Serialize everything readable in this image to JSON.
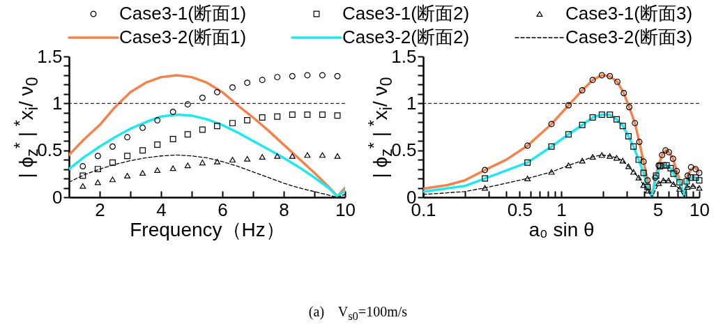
{
  "chart_data": [
    {
      "type": "line",
      "xlabel": "Frequency（Hz）",
      "ylabel": "| ϕ$_{z}$$^{*}$ | $^{*}$x$_{i}$/ ν$_{0}$",
      "xlim": [
        1,
        10
      ],
      "ylim": [
        0,
        1.5
      ],
      "xticks": [
        2,
        {
          "value": 3,
          "label": null
        },
        4,
        {
          "value": 5,
          "label": null
        },
        6,
        {
          "value": 7,
          "label": null
        },
        8,
        {
          "value": 9,
          "label": null
        },
        10
      ],
      "yticks": [
        0,
        {
          "value": 0.1,
          "label": null
        },
        {
          "value": 0.2,
          "label": null
        },
        {
          "value": 0.3,
          "label": null
        },
        {
          "value": 0.4,
          "label": null
        },
        0.5,
        {
          "value": 0.6,
          "label": null
        },
        {
          "value": 0.7,
          "label": null
        },
        {
          "value": 0.8,
          "label": null
        },
        {
          "value": 0.9,
          "label": null
        },
        1,
        {
          "value": 1.1,
          "label": null
        },
        {
          "value": 1.2,
          "label": null
        },
        {
          "value": 1.3,
          "label": null
        },
        {
          "value": 1.4,
          "label": null
        },
        1.5
      ],
      "legend": "top",
      "ref_lines": [
        {
          "axis": "y",
          "value": 1,
          "color": "#000000",
          "line_style": "dashed"
        }
      ],
      "annotations": [
        "(a)    V$_{s0}$=100m/s"
      ],
      "series": [
        {
          "name": "Case3-1(断面1)",
          "type": "scatter",
          "marker": "circle",
          "color": "#000000",
          "x": [
            1.45,
            1.94,
            2.42,
            2.9,
            3.4,
            3.88,
            4.39,
            4.87,
            5.35,
            5.83,
            6.33,
            6.81,
            7.3,
            7.79,
            8.28,
            8.77,
            9.26,
            9.75
          ],
          "values": [
            0.33,
            0.44,
            0.54,
            0.64,
            0.74,
            0.82,
            0.91,
            0.99,
            1.06,
            1.12,
            1.17,
            1.22,
            1.25,
            1.28,
            1.29,
            1.3,
            1.3,
            1.29
          ]
        },
        {
          "name": "Case3-1(断面2)",
          "type": "scatter",
          "marker": "square",
          "color": "#000000",
          "x": [
            1.45,
            1.94,
            2.42,
            2.9,
            3.4,
            3.88,
            4.39,
            4.87,
            5.35,
            5.83,
            6.33,
            6.81,
            7.3,
            7.79,
            8.28,
            8.77,
            9.26,
            9.75
          ],
          "values": [
            0.23,
            0.3,
            0.37,
            0.44,
            0.5,
            0.56,
            0.62,
            0.67,
            0.72,
            0.76,
            0.79,
            0.82,
            0.85,
            0.86,
            0.88,
            0.88,
            0.88,
            0.87
          ]
        },
        {
          "name": "Case3-1(断面3)",
          "type": "scatter",
          "marker": "triangle",
          "color": "#000000",
          "x": [
            1.45,
            1.94,
            2.42,
            2.9,
            3.4,
            3.88,
            4.39,
            4.87,
            5.35,
            5.83,
            6.33,
            6.81,
            7.3,
            7.79,
            8.28,
            8.77,
            9.26,
            9.75
          ],
          "values": [
            0.12,
            0.16,
            0.19,
            0.23,
            0.26,
            0.29,
            0.31,
            0.34,
            0.37,
            0.38,
            0.4,
            0.41,
            0.43,
            0.44,
            0.44,
            0.45,
            0.45,
            0.44
          ]
        },
        {
          "name": "Case3-2(断面1)",
          "type": "line",
          "marker": "none",
          "line_style": "solid",
          "color": "#f4824a",
          "x": [
            1,
            1.5,
            2,
            2.5,
            3,
            3.5,
            4,
            4.5,
            5,
            5.5,
            6,
            6.5,
            7,
            7.5,
            8,
            8.5,
            9,
            9.5,
            9.75,
            10
          ],
          "values": [
            0.45,
            0.62,
            0.77,
            0.96,
            1.12,
            1.22,
            1.28,
            1.3,
            1.28,
            1.22,
            1.12,
            0.98,
            0.85,
            0.71,
            0.56,
            0.41,
            0.26,
            0.1,
            0.01,
            0.1
          ]
        },
        {
          "name": "Case3-2(断面2)",
          "type": "line",
          "marker": "none",
          "line_style": "solid",
          "color": "#1de9f0",
          "x": [
            1,
            1.5,
            2,
            2.5,
            3,
            3.5,
            4,
            4.5,
            5,
            5.5,
            6,
            6.5,
            7,
            7.5,
            8,
            8.5,
            9,
            9.5,
            9.75,
            10
          ],
          "values": [
            0.3,
            0.43,
            0.54,
            0.64,
            0.73,
            0.8,
            0.86,
            0.88,
            0.87,
            0.83,
            0.77,
            0.69,
            0.6,
            0.51,
            0.42,
            0.32,
            0.21,
            0.09,
            0.01,
            0.07
          ]
        },
        {
          "name": "Case3-2(断面3)",
          "type": "line",
          "marker": "none",
          "line_style": "dashed",
          "color": "#000000",
          "x": [
            1,
            1.5,
            2,
            2.5,
            3,
            3.5,
            4,
            4.5,
            5,
            5.5,
            6,
            6.5,
            7,
            7.5,
            8,
            8.5,
            9,
            9.5,
            9.75,
            10
          ],
          "values": [
            0.16,
            0.24,
            0.3,
            0.35,
            0.39,
            0.42,
            0.44,
            0.45,
            0.44,
            0.42,
            0.38,
            0.33,
            0.27,
            0.21,
            0.15,
            0.1,
            0.06,
            0.02,
            0,
            0.03
          ]
        }
      ]
    },
    {
      "type": "line",
      "xlabel": "a₀ sin θ",
      "ylabel": "| ϕ$_{z}$$^{*}$ | $^{*}$x$_{i}$/ ν$_{0}$",
      "xlim": [
        0.1,
        10
      ],
      "ylim": [
        0,
        1.5
      ],
      "log": "x",
      "xticks": [
        0.1,
        {
          "value": 0.2,
          "label": null
        },
        {
          "value": 0.3,
          "label": null
        },
        {
          "value": 0.4,
          "label": null
        },
        0.5,
        {
          "value": 0.6,
          "label": null
        },
        {
          "value": 0.7,
          "label": null
        },
        {
          "value": 0.8,
          "label": null
        },
        {
          "value": 0.9,
          "label": null
        },
        1,
        {
          "value": 2,
          "label": null
        },
        {
          "value": 3,
          "label": null
        },
        {
          "value": 4,
          "label": null
        },
        5,
        {
          "value": 6,
          "label": null
        },
        {
          "value": 7,
          "label": null
        },
        {
          "value": 8,
          "label": null
        },
        {
          "value": 9,
          "label": null
        },
        10
      ],
      "yticks": [
        0,
        {
          "value": 0.1,
          "label": null
        },
        {
          "value": 0.2,
          "label": null
        },
        {
          "value": 0.3,
          "label": null
        },
        {
          "value": 0.4,
          "label": null
        },
        0.5,
        {
          "value": 0.6,
          "label": null
        },
        {
          "value": 0.7,
          "label": null
        },
        {
          "value": 0.8,
          "label": null
        },
        {
          "value": 0.9,
          "label": null
        },
        1,
        {
          "value": 1.1,
          "label": null
        },
        {
          "value": 1.2,
          "label": null
        },
        {
          "value": 1.3,
          "label": null
        },
        {
          "value": 1.4,
          "label": null
        },
        1.5
      ],
      "ref_lines": [
        {
          "axis": "y",
          "value": 1,
          "color": "#000000",
          "line_style": "dashed"
        }
      ],
      "series": [
        {
          "type": "scatter",
          "marker": "circle",
          "color": "#000000",
          "x": [
            0.28,
            0.57,
            0.85,
            1.13,
            1.42,
            1.69,
            1.97,
            2.25,
            2.55,
            2.84,
            3.11,
            3.42,
            3.68,
            3.95,
            4.22,
            4.8,
            5.08,
            5.38,
            5.7,
            6.03,
            6.45,
            6.87,
            7.25,
            8.24,
            8.72,
            9.4,
            10
          ],
          "values": [
            0.29,
            0.55,
            0.78,
            0.98,
            1.14,
            1.25,
            1.3,
            1.29,
            1.23,
            1.11,
            0.96,
            0.79,
            0.59,
            0.38,
            0.18,
            0.21,
            0.34,
            0.45,
            0.5,
            0.48,
            0.41,
            0.28,
            null,
            0.23,
            0.32,
            0.3,
            0.26
          ]
        },
        {
          "type": "scatter",
          "marker": "square",
          "color": "#000000",
          "x": [
            0.28,
            0.57,
            0.85,
            1.13,
            1.42,
            1.69,
            1.97,
            2.25,
            2.52,
            2.79,
            3.07,
            3.34,
            3.64,
            3.95,
            4.22,
            4.87,
            5.2,
            5.5,
            5.8,
            6.2,
            6.5,
            7.2,
            8.1,
            8.7,
            9.4,
            10
          ],
          "values": [
            0.2,
            0.37,
            0.54,
            0.67,
            0.77,
            0.85,
            0.88,
            0.88,
            0.83,
            0.76,
            0.65,
            0.54,
            0.4,
            0.26,
            0.11,
            0.23,
            0.33,
            0.34,
            0.34,
            0.31,
            0.25,
            0.16,
            0.17,
            0.21,
            0.21,
            0.18
          ]
        },
        {
          "type": "scatter",
          "marker": "triangle",
          "color": "#000000",
          "x": [
            0.28,
            0.57,
            0.85,
            1.13,
            1.42,
            1.69,
            1.97,
            2.25,
            2.52,
            2.79,
            3.07,
            3.34,
            3.64,
            3.95,
            4.25,
            5.08,
            5.5,
            6,
            6.5,
            7.2,
            8.2,
            9,
            10
          ],
          "values": [
            0.1,
            0.2,
            0.27,
            0.34,
            0.39,
            0.43,
            0.45,
            0.44,
            0.42,
            0.39,
            0.33,
            0.27,
            0.21,
            0.13,
            0.07,
            0.15,
            0.18,
            0.18,
            0.14,
            0.09,
            0.11,
            0.12,
            0.1
          ]
        },
        {
          "type": "line",
          "marker": "none",
          "line_style": "solid",
          "color": "#f4824a",
          "x": [
            0.1,
            0.15,
            0.2,
            0.28,
            0.4,
            0.57,
            0.85,
            1.13,
            1.42,
            1.69,
            1.97,
            2.25,
            2.55,
            2.84,
            3.11,
            3.42,
            3.68,
            3.95,
            4.22,
            4.55,
            4.8,
            5.08,
            5.38,
            5.7,
            6.03,
            6.45,
            6.87,
            7.25,
            7.8,
            8.24,
            8.72,
            9.2,
            9.6,
            10
          ],
          "values": [
            0.09,
            0.13,
            0.18,
            0.29,
            0.4,
            0.55,
            0.78,
            0.98,
            1.14,
            1.25,
            1.3,
            1.29,
            1.23,
            1.11,
            0.96,
            0.79,
            0.59,
            0.38,
            0.18,
            0,
            0.21,
            0.34,
            0.45,
            0.5,
            0.48,
            0.41,
            0.28,
            0.17,
            0,
            0.23,
            0.3,
            0.32,
            0.3,
            0.26
          ]
        },
        {
          "type": "line",
          "marker": "none",
          "line_style": "solid",
          "color": "#1de9f0",
          "x": [
            0.1,
            0.2,
            0.28,
            0.57,
            0.85,
            1.13,
            1.42,
            1.69,
            1.97,
            2.25,
            2.52,
            2.79,
            3.07,
            3.34,
            3.64,
            3.95,
            4.22,
            4.55,
            4.87,
            5.2,
            5.5,
            5.8,
            6.2,
            6.5,
            7.2,
            7.8,
            8.1,
            8.7,
            9.4,
            10
          ],
          "values": [
            0.06,
            0.12,
            0.2,
            0.37,
            0.54,
            0.67,
            0.77,
            0.85,
            0.88,
            0.88,
            0.83,
            0.76,
            0.65,
            0.54,
            0.4,
            0.26,
            0.11,
            0,
            0.23,
            0.33,
            0.34,
            0.34,
            0.31,
            0.25,
            0.16,
            0,
            0.17,
            0.21,
            0.21,
            0.18
          ]
        },
        {
          "type": "line",
          "marker": "none",
          "line_style": "dashed",
          "color": "#000000",
          "x": [
            0.1,
            0.2,
            0.28,
            0.57,
            0.85,
            1.13,
            1.42,
            1.69,
            1.97,
            2.25,
            2.52,
            2.79,
            3.07,
            3.34,
            3.64,
            3.95,
            4.25,
            4.55,
            5.08,
            5.5,
            6,
            6.5,
            7.2,
            7.8,
            8.2,
            9,
            10
          ],
          "values": [
            0.03,
            0.06,
            0.1,
            0.2,
            0.27,
            0.34,
            0.39,
            0.43,
            0.45,
            0.44,
            0.42,
            0.39,
            0.33,
            0.27,
            0.21,
            0.13,
            0.07,
            0,
            0.15,
            0.18,
            0.18,
            0.14,
            0.09,
            0,
            0.11,
            0.12,
            0.1
          ]
        }
      ]
    }
  ]
}
